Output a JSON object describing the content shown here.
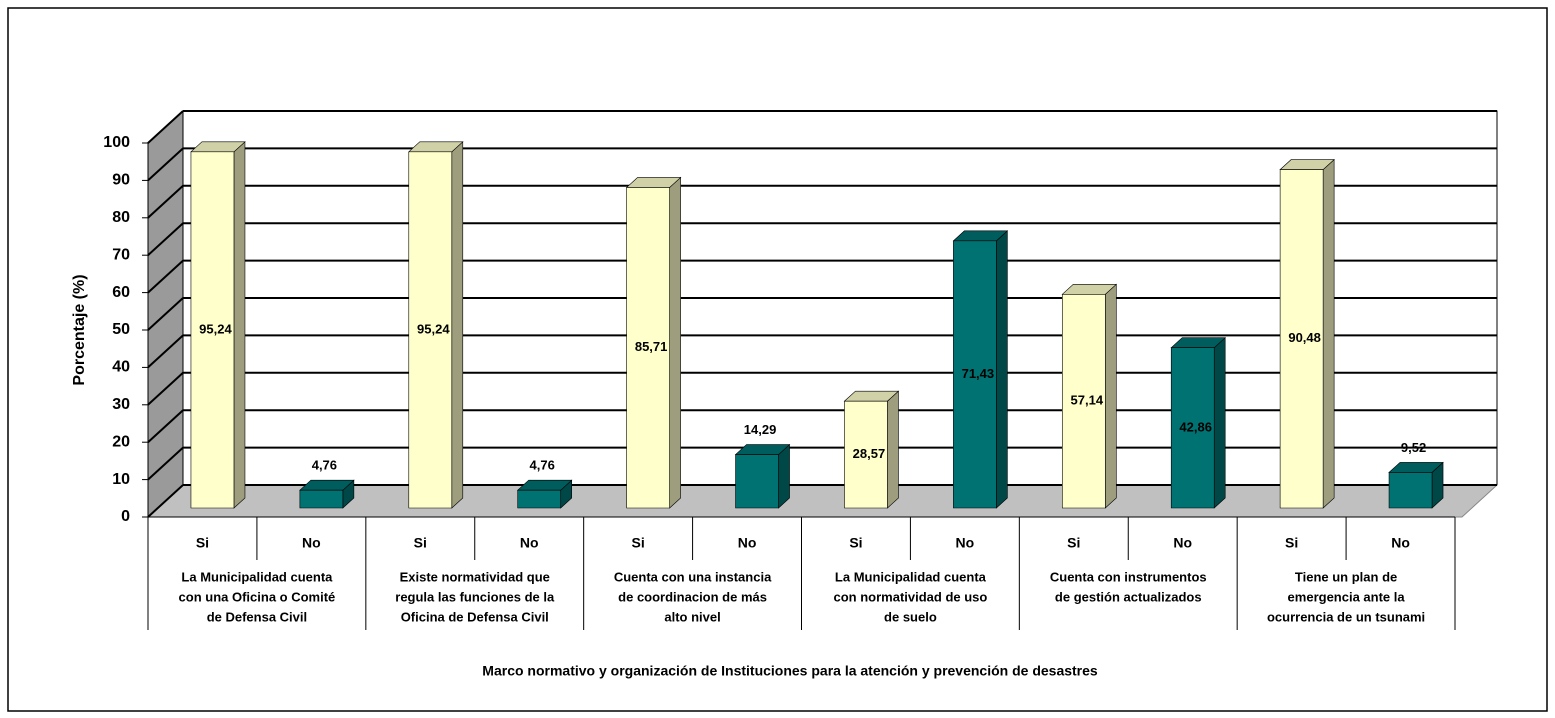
{
  "chart_data": {
    "type": "bar3d",
    "x_label": "Marco normativo y organización de Instituciones para la atención y prevención de desastres",
    "y_label": "Porcentaje (%)",
    "groups": [
      [
        "La Municipalidad cuenta",
        "con una Oficina o Comité",
        "de Defensa Civil"
      ],
      [
        "Existe normatividad que",
        "regula las funciones de la",
        "Oficina de Defensa Civil"
      ],
      [
        "Cuenta con una instancia",
        "de coordinacion de más",
        "alto nivel"
      ],
      [
        "La Municipalidad cuenta",
        "con normatividad de uso",
        "de suelo"
      ],
      [
        "Cuenta con instrumentos",
        "de gestión actualizados"
      ],
      [
        "Tiene un plan de",
        "emergencia ante la",
        "ocurrencia de un tsunami"
      ]
    ],
    "series": [
      {
        "name": "Si",
        "color": "#ffffcc",
        "values": [
          95.24,
          95.24,
          85.71,
          28.57,
          57.14,
          90.48
        ],
        "value_labels": [
          "95,24",
          "95,24",
          "85,71",
          "28,57",
          "57,14",
          "90,48"
        ]
      },
      {
        "name": "No",
        "color": "#007272",
        "values": [
          4.76,
          4.76,
          14.29,
          71.43,
          42.86,
          9.52
        ],
        "value_labels": [
          "4,76",
          "4,76",
          "14,29",
          "71,43",
          "42,86",
          "9,52"
        ]
      }
    ],
    "ylim": [
      0,
      100
    ],
    "yticks": [
      0,
      10,
      20,
      30,
      40,
      50,
      60,
      70,
      80,
      90,
      100
    ],
    "grid": true
  }
}
